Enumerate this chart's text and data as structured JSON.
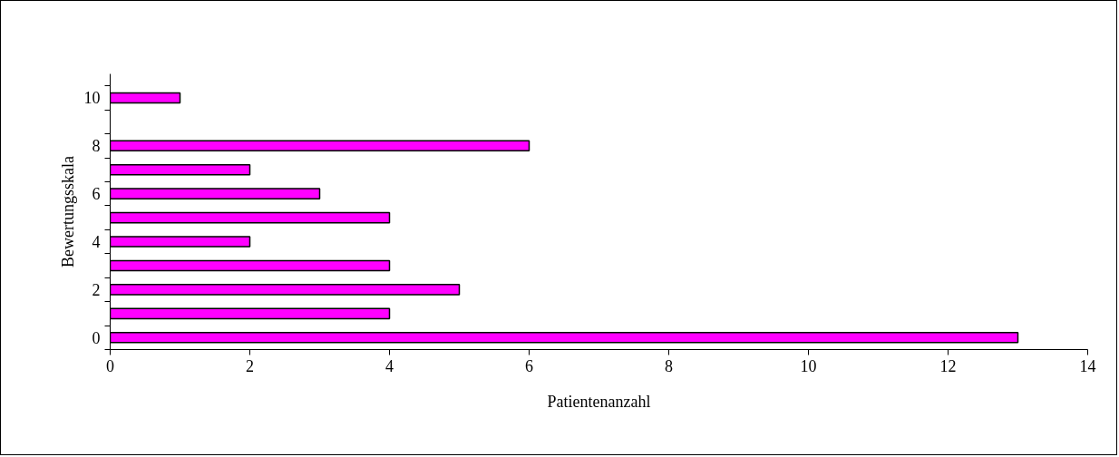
{
  "chart_data": {
    "type": "bar",
    "orientation": "horizontal",
    "xlabel": "Patientenanzahl",
    "ylabel": "Bewertungsskala",
    "categories": [
      "10",
      null,
      "8",
      null,
      "6",
      null,
      "4",
      null,
      "2",
      null,
      "0"
    ],
    "values": [
      1,
      null,
      6,
      2,
      3,
      4,
      2,
      4,
      5,
      4,
      13
    ],
    "color": "#ff00ff",
    "xlim": [
      0,
      14
    ],
    "xticks": [
      0,
      2,
      4,
      6,
      8,
      10,
      12,
      14
    ],
    "grid": false
  }
}
